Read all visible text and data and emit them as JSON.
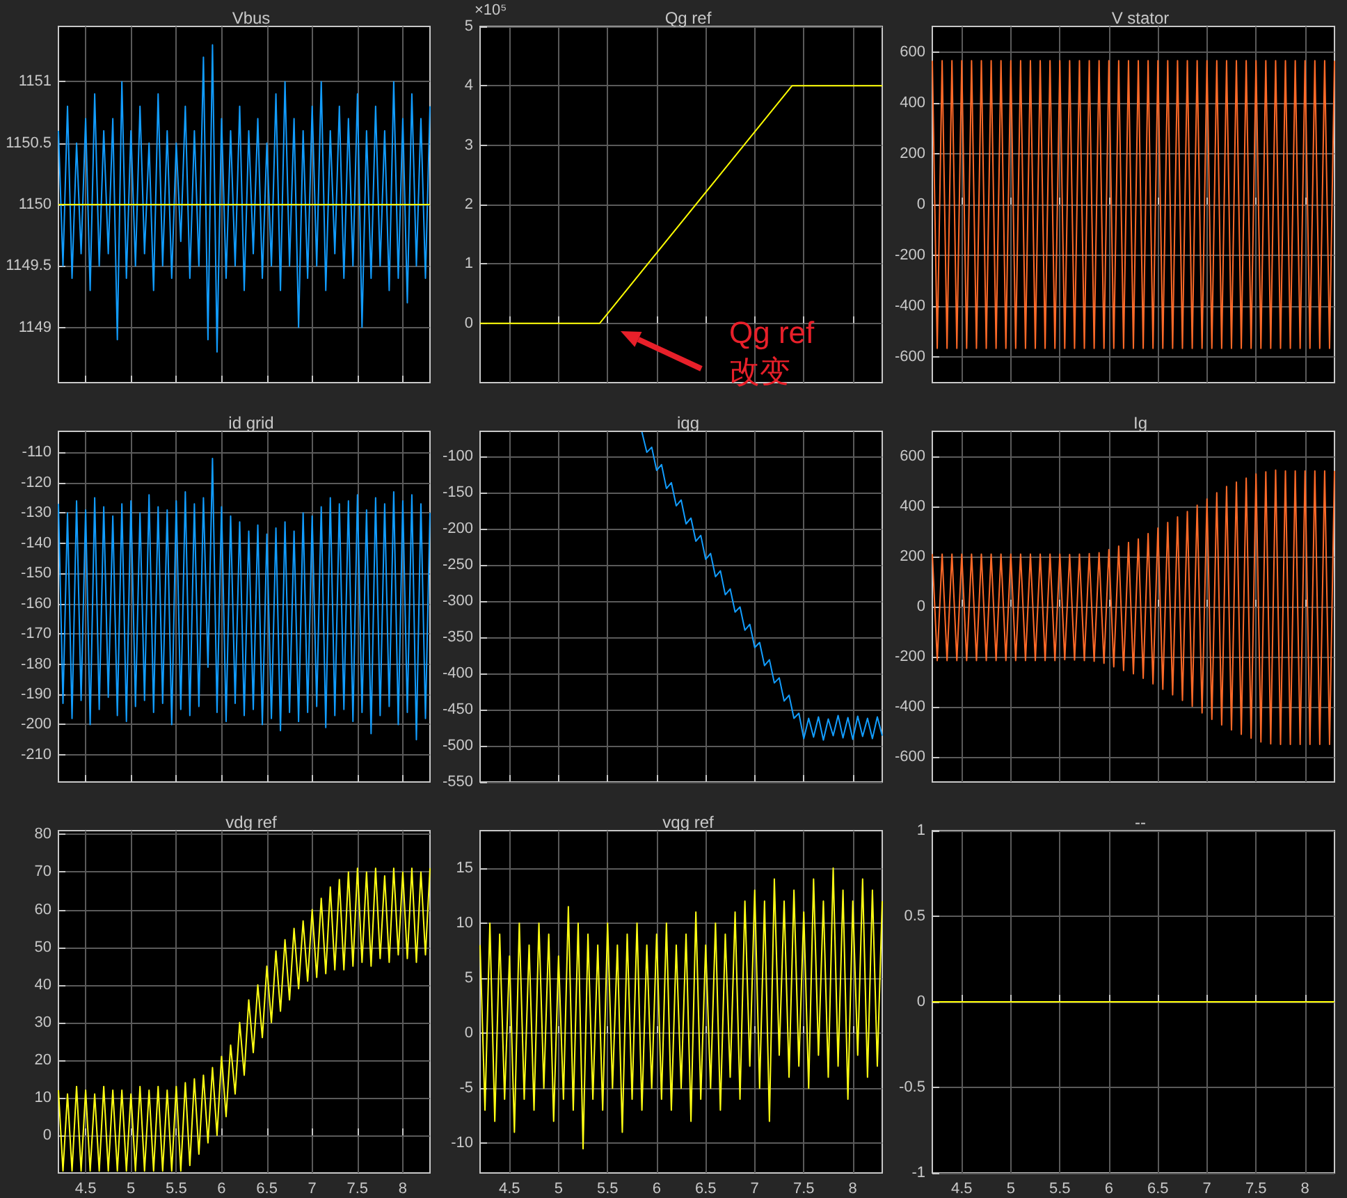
{
  "chart_data": [
    {
      "type": "line",
      "title": "Vbus",
      "xlim": [
        4.2,
        8.3
      ],
      "xticks": [
        4.5,
        5,
        5.5,
        6,
        6.5,
        7,
        7.5,
        8
      ],
      "ylim": [
        1148.55,
        1151.45
      ],
      "yticks": [
        1149,
        1149.5,
        1150,
        1150.5,
        1151
      ],
      "grid": true,
      "marker": "none",
      "tick_labels": "y",
      "x": [
        4.2,
        4.25,
        4.3,
        4.35,
        4.4,
        4.45,
        4.5,
        4.55,
        4.6,
        4.65,
        4.7,
        4.75,
        4.8,
        4.85,
        4.9,
        4.95,
        5,
        5.05,
        5.1,
        5.15,
        5.2,
        5.25,
        5.3,
        5.35,
        5.4,
        5.45,
        5.5,
        5.55,
        5.6,
        5.65,
        5.7,
        5.75,
        5.8,
        5.85,
        5.9,
        5.95,
        6,
        6.05,
        6.1,
        6.15,
        6.2,
        6.25,
        6.3,
        6.35,
        6.4,
        6.45,
        6.5,
        6.55,
        6.6,
        6.65,
        6.7,
        6.75,
        6.8,
        6.85,
        6.9,
        6.95,
        7,
        7.05,
        7.1,
        7.15,
        7.2,
        7.25,
        7.3,
        7.35,
        7.4,
        7.45,
        7.5,
        7.55,
        7.6,
        7.65,
        7.7,
        7.75,
        7.8,
        7.85,
        7.9,
        7.95,
        8,
        8.05,
        8.1,
        8.15,
        8.2,
        8.25,
        8.3
      ],
      "series": [
        {
          "color": "#129dff",
          "values": [
            1150.6,
            1149.5,
            1150.8,
            1149.4,
            1150.5,
            1149.6,
            1150.7,
            1149.3,
            1150.9,
            1149.5,
            1150.6,
            1149.6,
            1150.7,
            1148.9,
            1151.0,
            1149.4,
            1150.6,
            1149.5,
            1150.8,
            1149.6,
            1150.5,
            1149.3,
            1150.9,
            1149.5,
            1150.6,
            1149.4,
            1150.5,
            1149.7,
            1150.8,
            1149.4,
            1150.6,
            1149.5,
            1151.2,
            1148.9,
            1151.3,
            1148.8,
            1150.7,
            1149.4,
            1150.6,
            1149.5,
            1150.8,
            1149.3,
            1150.6,
            1149.6,
            1150.7,
            1149.4,
            1150.5,
            1149.5,
            1150.9,
            1149.3,
            1151.0,
            1149.5,
            1150.7,
            1149.0,
            1150.6,
            1149.4,
            1150.8,
            1149.5,
            1151.0,
            1149.3,
            1150.6,
            1149.6,
            1150.8,
            1149.4,
            1150.7,
            1149.5,
            1150.9,
            1149.0,
            1150.6,
            1149.4,
            1150.8,
            1149.5,
            1150.6,
            1149.3,
            1151.0,
            1149.4,
            1150.7,
            1149.2,
            1150.9,
            1149.5,
            1150.7,
            1149.4,
            1150.8
          ]
        },
        {
          "color": "#ffff00",
          "x": [
            4.2,
            8.3
          ],
          "values": [
            1150,
            1150
          ]
        }
      ]
    },
    {
      "type": "line",
      "title": "Qg ref",
      "xlim": [
        4.2,
        8.3
      ],
      "xticks": [
        4.5,
        5,
        5.5,
        6,
        6.5,
        7,
        7.5,
        8
      ],
      "ylim": [
        -1,
        5
      ],
      "yticks": [
        0,
        1,
        2,
        3,
        4,
        5
      ],
      "grid": true,
      "marker": "none",
      "tick_labels": "y",
      "annotations": [
        "×10⁵",
        "Qg ref\n改变"
      ],
      "series": [
        {
          "color": "#ffff00",
          "x": [
            4.2,
            5.42,
            7.38,
            8.3
          ],
          "values": [
            0,
            0,
            4,
            4
          ]
        }
      ]
    },
    {
      "type": "line",
      "title": "V stator",
      "xlim": [
        4.2,
        8.3
      ],
      "xticks": [
        4.5,
        5,
        5.5,
        6,
        6.5,
        7,
        7.5,
        8
      ],
      "ylim": [
        -700,
        700
      ],
      "yticks": [
        -600,
        -400,
        -200,
        0,
        200,
        400,
        600
      ],
      "grid": true,
      "marker": "none",
      "tick_labels": "y",
      "x": [
        4.2,
        4.25,
        4.3,
        4.35,
        4.4,
        4.45,
        4.5,
        4.55,
        4.6,
        4.65,
        4.7,
        4.75,
        4.8,
        4.85,
        4.9,
        4.95,
        5,
        5.05,
        5.1,
        5.15,
        5.2,
        5.25,
        5.3,
        5.35,
        5.4,
        5.45,
        5.5,
        5.55,
        5.6,
        5.65,
        5.7,
        5.75,
        5.8,
        5.85,
        5.9,
        5.95,
        6,
        6.05,
        6.1,
        6.15,
        6.2,
        6.25,
        6.3,
        6.35,
        6.4,
        6.45,
        6.5,
        6.55,
        6.6,
        6.65,
        6.7,
        6.75,
        6.8,
        6.85,
        6.9,
        6.95,
        7,
        7.05,
        7.1,
        7.15,
        7.2,
        7.25,
        7.3,
        7.35,
        7.4,
        7.45,
        7.5,
        7.55,
        7.6,
        7.65,
        7.7,
        7.75,
        7.8,
        7.85,
        7.9,
        7.95,
        8,
        8.05,
        8.1,
        8.15,
        8.2,
        8.25,
        8.3
      ],
      "series": [
        {
          "color": "#ff6a28",
          "values": [
            565,
            -565,
            565,
            -565,
            565,
            -565,
            565,
            -565,
            565,
            -565,
            565,
            -565,
            565,
            -565,
            565,
            -565,
            565,
            -565,
            565,
            -565,
            565,
            -565,
            565,
            -565,
            565,
            -565,
            565,
            -565,
            565,
            -565,
            565,
            -565,
            565,
            -565,
            565,
            -565,
            565,
            -565,
            565,
            -565,
            565,
            -565,
            565,
            -565,
            565,
            -565,
            565,
            -565,
            565,
            -565,
            565,
            -565,
            565,
            -565,
            565,
            -565,
            565,
            -565,
            565,
            -565,
            565,
            -565,
            565,
            -565,
            565,
            -565,
            565,
            -565,
            565,
            -565,
            565,
            -565,
            565,
            -565,
            565,
            -565,
            565,
            -565,
            565,
            -565,
            565,
            -565,
            565
          ]
        }
      ]
    },
    {
      "type": "line",
      "title": "id grid",
      "xlim": [
        4.2,
        8.3
      ],
      "xticks": [
        4.5,
        5,
        5.5,
        6,
        6.5,
        7,
        7.5,
        8
      ],
      "ylim": [
        -219,
        -103
      ],
      "yticks": [
        -210,
        -200,
        -190,
        -180,
        -170,
        -160,
        -150,
        -140,
        -130,
        -120,
        -110
      ],
      "grid": true,
      "marker": "none",
      "tick_labels": "y",
      "x": [
        4.2,
        4.25,
        4.3,
        4.35,
        4.4,
        4.45,
        4.5,
        4.55,
        4.6,
        4.65,
        4.7,
        4.75,
        4.8,
        4.85,
        4.9,
        4.95,
        5,
        5.05,
        5.1,
        5.15,
        5.2,
        5.25,
        5.3,
        5.35,
        5.4,
        5.45,
        5.5,
        5.55,
        5.6,
        5.65,
        5.7,
        5.75,
        5.8,
        5.85,
        5.9,
        5.95,
        6,
        6.05,
        6.1,
        6.15,
        6.2,
        6.25,
        6.3,
        6.35,
        6.4,
        6.45,
        6.5,
        6.55,
        6.6,
        6.65,
        6.7,
        6.75,
        6.8,
        6.85,
        6.9,
        6.95,
        7,
        7.05,
        7.1,
        7.15,
        7.2,
        7.25,
        7.3,
        7.35,
        7.4,
        7.45,
        7.5,
        7.55,
        7.6,
        7.65,
        7.7,
        7.75,
        7.8,
        7.85,
        7.9,
        7.95,
        8,
        8.05,
        8.1,
        8.15,
        8.2,
        8.25,
        8.3
      ],
      "series": [
        {
          "color": "#129dff",
          "values": [
            -127,
            -193,
            -130,
            -198,
            -126,
            -192,
            -129,
            -200,
            -125,
            -195,
            -128,
            -191,
            -131,
            -197,
            -127,
            -199,
            -126,
            -194,
            -130,
            -192,
            -124,
            -196,
            -128,
            -193,
            -129,
            -200,
            -126,
            -195,
            -123,
            -197,
            -127,
            -194,
            -125,
            -181,
            -112,
            -196,
            -128,
            -199,
            -131,
            -193,
            -133,
            -197,
            -136,
            -195,
            -134,
            -200,
            -137,
            -198,
            -135,
            -202,
            -133,
            -196,
            -136,
            -199,
            -130,
            -196,
            -131,
            -194,
            -128,
            -201,
            -125,
            -197,
            -127,
            -195,
            -126,
            -199,
            -124,
            -196,
            -129,
            -203,
            -125,
            -197,
            -127,
            -194,
            -123,
            -200,
            -126,
            -196,
            -124,
            -205,
            -127,
            -198,
            -130
          ]
        }
      ]
    },
    {
      "type": "line",
      "title": "iqg",
      "xlim": [
        4.2,
        8.3
      ],
      "xticks": [
        4.5,
        5,
        5.5,
        6,
        6.5,
        7,
        7.5,
        8
      ],
      "ylim": [
        -550,
        -65
      ],
      "yticks": [
        -550,
        -500,
        -450,
        -400,
        -350,
        -300,
        -250,
        -200,
        -150,
        -100
      ],
      "grid": true,
      "marker": "none",
      "tick_labels": "y",
      "series": [
        {
          "color": "#129dff",
          "x": [
            5.85,
            5.9,
            5.95,
            6,
            6.05,
            6.1,
            6.15,
            6.2,
            6.25,
            6.3,
            6.35,
            6.4,
            6.45,
            6.5,
            6.55,
            6.6,
            6.65,
            6.7,
            6.75,
            6.8,
            6.85,
            6.9,
            6.95,
            7,
            7.05,
            7.1,
            7.15,
            7.2,
            7.25,
            7.3,
            7.35,
            7.4,
            7.45,
            7.5,
            7.55,
            7.6,
            7.65,
            7.7,
            7.75,
            7.8,
            7.85,
            7.9,
            7.95,
            8,
            8.05,
            8.1,
            8.15,
            8.2,
            8.25,
            8.3
          ],
          "values": [
            -66,
            -94,
            -87,
            -119,
            -111,
            -144,
            -136,
            -168,
            -160,
            -193,
            -185,
            -217,
            -209,
            -242,
            -234,
            -266,
            -258,
            -291,
            -283,
            -315,
            -308,
            -340,
            -332,
            -364,
            -357,
            -389,
            -381,
            -413,
            -406,
            -438,
            -430,
            -462,
            -455,
            -490,
            -462,
            -488,
            -460,
            -492,
            -463,
            -486,
            -458,
            -489,
            -461,
            -491,
            -459,
            -487,
            -462,
            -490,
            -460,
            -486
          ]
        }
      ]
    },
    {
      "type": "line",
      "title": "Ig",
      "xlim": [
        4.2,
        8.3
      ],
      "xticks": [
        4.5,
        5,
        5.5,
        6,
        6.5,
        7,
        7.5,
        8
      ],
      "ylim": [
        -700,
        700
      ],
      "yticks": [
        -600,
        -400,
        -200,
        0,
        200,
        400,
        600
      ],
      "grid": true,
      "marker": "none",
      "tick_labels": "y",
      "x": [
        4.2,
        4.25,
        4.3,
        4.35,
        4.4,
        4.45,
        4.5,
        4.55,
        4.6,
        4.65,
        4.7,
        4.75,
        4.8,
        4.85,
        4.9,
        4.95,
        5,
        5.05,
        5.1,
        5.15,
        5.2,
        5.25,
        5.3,
        5.35,
        5.4,
        5.45,
        5.5,
        5.55,
        5.6,
        5.65,
        5.7,
        5.75,
        5.8,
        5.85,
        5.9,
        5.95,
        6,
        6.05,
        6.1,
        6.15,
        6.2,
        6.25,
        6.3,
        6.35,
        6.4,
        6.45,
        6.5,
        6.55,
        6.6,
        6.65,
        6.7,
        6.75,
        6.8,
        6.85,
        6.9,
        6.95,
        7,
        7.05,
        7.1,
        7.15,
        7.2,
        7.25,
        7.3,
        7.35,
        7.4,
        7.45,
        7.5,
        7.55,
        7.6,
        7.65,
        7.7,
        7.75,
        7.8,
        7.85,
        7.9,
        7.95,
        8,
        8.05,
        8.1,
        8.15,
        8.2,
        8.25,
        8.3
      ],
      "series": [
        {
          "color": "#ff6a28",
          "values": [
            210,
            -215,
            210,
            -215,
            210,
            -215,
            210,
            -215,
            210,
            -215,
            210,
            -215,
            210,
            -215,
            210,
            -215,
            210,
            -215,
            210,
            -215,
            210,
            -215,
            210,
            -215,
            210,
            -215,
            210,
            -212,
            208,
            -213,
            210,
            -215,
            212,
            -218,
            215,
            -226,
            228,
            -240,
            242,
            -255,
            256,
            -268,
            270,
            -286,
            292,
            -308,
            314,
            -330,
            336,
            -352,
            358,
            -374,
            380,
            -398,
            405,
            -424,
            430,
            -450,
            455,
            -472,
            480,
            -492,
            497,
            -510,
            513,
            -525,
            530,
            -540,
            538,
            -548,
            545,
            -550,
            542,
            -550,
            542,
            -550,
            542,
            -550,
            542,
            -550,
            542,
            -550,
            542
          ]
        }
      ]
    },
    {
      "type": "line",
      "title": "vdg ref",
      "xlim": [
        4.2,
        8.3
      ],
      "xticks": [
        4.5,
        5,
        5.5,
        6,
        6.5,
        7,
        7.5,
        8
      ],
      "ylim": [
        -10,
        81
      ],
      "yticks": [
        0,
        10,
        20,
        30,
        40,
        50,
        60,
        70,
        80
      ],
      "grid": true,
      "marker": "none",
      "x": [
        4.2,
        4.25,
        4.3,
        4.35,
        4.4,
        4.45,
        4.5,
        4.55,
        4.6,
        4.65,
        4.7,
        4.75,
        4.8,
        4.85,
        4.9,
        4.95,
        5,
        5.05,
        5.1,
        5.15,
        5.2,
        5.25,
        5.3,
        5.35,
        5.4,
        5.45,
        5.5,
        5.55,
        5.6,
        5.65,
        5.7,
        5.75,
        5.8,
        5.85,
        5.9,
        5.95,
        6,
        6.05,
        6.1,
        6.15,
        6.2,
        6.25,
        6.3,
        6.35,
        6.4,
        6.45,
        6.5,
        6.55,
        6.6,
        6.65,
        6.7,
        6.75,
        6.8,
        6.85,
        6.9,
        6.95,
        7,
        7.05,
        7.1,
        7.15,
        7.2,
        7.25,
        7.3,
        7.35,
        7.4,
        7.45,
        7.5,
        7.55,
        7.6,
        7.65,
        7.7,
        7.75,
        7.8,
        7.85,
        7.9,
        7.95,
        8,
        8.05,
        8.1,
        8.15,
        8.2,
        8.25,
        8.3
      ],
      "series": [
        {
          "color": "#ffff14",
          "values": [
            12,
            -9.5,
            11,
            -9.5,
            13,
            -9.5,
            12,
            -9.5,
            11,
            -9.5,
            13,
            -9.5,
            12,
            -9.5,
            12,
            -9.5,
            11,
            -9.5,
            13,
            -9.5,
            12,
            -9.5,
            13,
            -9.5,
            12,
            -9.5,
            13,
            -9.5,
            14,
            -8,
            15,
            -5,
            16,
            -2,
            18,
            0,
            21,
            5,
            24,
            11,
            30,
            16,
            36,
            22,
            40,
            26,
            45,
            30,
            49,
            33,
            52,
            36,
            55,
            39,
            57,
            41,
            60,
            42,
            63,
            43,
            66,
            44,
            68,
            44,
            70,
            45,
            71,
            46,
            70,
            45,
            71,
            47,
            69,
            46,
            71,
            48,
            70,
            47,
            71,
            46,
            70,
            48,
            71
          ]
        }
      ]
    },
    {
      "type": "line",
      "title": "vqg ref",
      "xlim": [
        4.2,
        8.3
      ],
      "xticks": [
        4.5,
        5,
        5.5,
        6,
        6.5,
        7,
        7.5,
        8
      ],
      "ylim": [
        -12.7,
        18.4
      ],
      "yticks": [
        -10,
        -5,
        0,
        5,
        10,
        15
      ],
      "grid": true,
      "marker": "none",
      "x": [
        4.2,
        4.25,
        4.3,
        4.35,
        4.4,
        4.45,
        4.5,
        4.55,
        4.6,
        4.65,
        4.7,
        4.75,
        4.8,
        4.85,
        4.9,
        4.95,
        5,
        5.05,
        5.1,
        5.15,
        5.2,
        5.25,
        5.3,
        5.35,
        5.4,
        5.45,
        5.5,
        5.55,
        5.6,
        5.65,
        5.7,
        5.75,
        5.8,
        5.85,
        5.9,
        5.95,
        6,
        6.05,
        6.1,
        6.15,
        6.2,
        6.25,
        6.3,
        6.35,
        6.4,
        6.45,
        6.5,
        6.55,
        6.6,
        6.65,
        6.7,
        6.75,
        6.8,
        6.85,
        6.9,
        6.95,
        7,
        7.05,
        7.1,
        7.15,
        7.2,
        7.25,
        7.3,
        7.35,
        7.4,
        7.45,
        7.5,
        7.55,
        7.6,
        7.65,
        7.7,
        7.75,
        7.8,
        7.85,
        7.9,
        7.95,
        8,
        8.05,
        8.1,
        8.15,
        8.2,
        8.25,
        8.3
      ],
      "series": [
        {
          "color": "#ffff14",
          "values": [
            8,
            -7,
            10,
            -8,
            9,
            -6,
            7,
            -9,
            10,
            -6,
            8,
            -7,
            10,
            -5,
            9,
            -8,
            7,
            -6,
            11.5,
            -7,
            10,
            -10.5,
            9,
            -6,
            8,
            -7,
            10,
            -5,
            8,
            -9,
            9,
            -6,
            10,
            -7,
            8,
            -5,
            9,
            -6,
            10,
            -7,
            8,
            -5,
            9,
            -8,
            11,
            -6,
            8,
            -5,
            10,
            -7,
            9,
            -4,
            11,
            -6,
            12,
            -3,
            13,
            -5,
            12,
            -8,
            14,
            -2,
            12,
            -4,
            13,
            -3,
            11,
            -5,
            14,
            -2,
            12,
            -4,
            15,
            -3,
            13,
            -6,
            12,
            -2,
            14,
            -4,
            13,
            -3,
            12
          ]
        }
      ]
    },
    {
      "type": "line",
      "title": "--",
      "xlim": [
        4.2,
        8.3
      ],
      "xticks": [
        4.5,
        5,
        5.5,
        6,
        6.5,
        7,
        7.5,
        8
      ],
      "ylim": [
        -1,
        1
      ],
      "yticks": [
        -1,
        -0.5,
        0,
        0.5,
        1
      ],
      "grid": true,
      "marker": "none",
      "series": [
        {
          "color": "#ffff00",
          "x": [
            4.2,
            8.3
          ],
          "values": [
            0,
            0
          ]
        }
      ]
    }
  ]
}
